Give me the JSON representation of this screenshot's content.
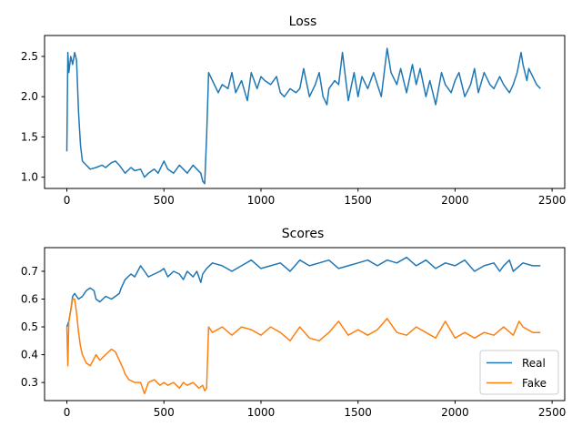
{
  "figure": {
    "background": "#ffffff"
  },
  "chart_data": [
    {
      "type": "line",
      "title": "Loss",
      "xlabel": "",
      "ylabel": "",
      "xlim": [
        -115,
        2565
      ],
      "ylim": [
        0.86,
        2.76
      ],
      "xticks": [
        0,
        500,
        1000,
        1500,
        2000,
        2500
      ],
      "xtick_labels": [
        "0",
        "500",
        "1000",
        "1500",
        "2000",
        "2500"
      ],
      "yticks": [
        1.0,
        1.5,
        2.0,
        2.5
      ],
      "ytick_labels": [
        "1.0",
        "1.5",
        "2.0",
        "2.5"
      ],
      "grid": false,
      "legend": null,
      "series": [
        {
          "color": "#1f77b4",
          "x": [
            0,
            5,
            10,
            20,
            30,
            40,
            50,
            60,
            70,
            80,
            100,
            120,
            150,
            180,
            200,
            230,
            250,
            270,
            300,
            330,
            350,
            380,
            400,
            420,
            450,
            470,
            490,
            500,
            520,
            550,
            580,
            600,
            620,
            650,
            670,
            690,
            700,
            710,
            720,
            730,
            750,
            780,
            800,
            830,
            850,
            870,
            900,
            930,
            950,
            980,
            1000,
            1020,
            1050,
            1080,
            1100,
            1120,
            1150,
            1180,
            1200,
            1220,
            1250,
            1280,
            1300,
            1320,
            1340,
            1350,
            1380,
            1400,
            1420,
            1450,
            1480,
            1500,
            1520,
            1550,
            1580,
            1600,
            1620,
            1650,
            1670,
            1700,
            1720,
            1750,
            1780,
            1800,
            1820,
            1850,
            1870,
            1900,
            1930,
            1950,
            1980,
            2000,
            2020,
            2050,
            2080,
            2100,
            2120,
            2150,
            2180,
            2200,
            2230,
            2250,
            2280,
            2300,
            2320,
            2340,
            2350,
            2370,
            2380,
            2400,
            2420,
            2440
          ],
          "y": [
            1.32,
            2.55,
            2.3,
            2.5,
            2.4,
            2.55,
            2.45,
            1.8,
            1.4,
            1.2,
            1.15,
            1.1,
            1.12,
            1.15,
            1.12,
            1.18,
            1.2,
            1.15,
            1.05,
            1.12,
            1.08,
            1.1,
            1.0,
            1.05,
            1.1,
            1.05,
            1.15,
            1.2,
            1.1,
            1.05,
            1.15,
            1.1,
            1.05,
            1.15,
            1.1,
            1.05,
            0.95,
            0.92,
            1.5,
            2.3,
            2.2,
            2.05,
            2.15,
            2.1,
            2.3,
            2.05,
            2.2,
            1.95,
            2.3,
            2.1,
            2.25,
            2.2,
            2.15,
            2.25,
            2.05,
            2.0,
            2.1,
            2.05,
            2.1,
            2.35,
            2.0,
            2.15,
            2.3,
            2.0,
            1.9,
            2.1,
            2.2,
            2.15,
            2.55,
            1.95,
            2.3,
            2.0,
            2.25,
            2.1,
            2.3,
            2.15,
            2.0,
            2.6,
            2.3,
            2.15,
            2.35,
            2.05,
            2.4,
            2.15,
            2.35,
            2.0,
            2.2,
            1.9,
            2.3,
            2.15,
            2.05,
            2.2,
            2.3,
            2.0,
            2.15,
            2.35,
            2.05,
            2.3,
            2.15,
            2.1,
            2.25,
            2.15,
            2.05,
            2.15,
            2.3,
            2.55,
            2.4,
            2.2,
            2.35,
            2.25,
            2.15,
            2.1
          ]
        }
      ]
    },
    {
      "type": "line",
      "title": "Scores",
      "xlabel": "",
      "ylabel": "",
      "xlim": [
        -115,
        2565
      ],
      "ylim": [
        0.235,
        0.785
      ],
      "xticks": [
        0,
        500,
        1000,
        1500,
        2000,
        2500
      ],
      "xtick_labels": [
        "0",
        "500",
        "1000",
        "1500",
        "2000",
        "2500"
      ],
      "yticks": [
        0.3,
        0.4,
        0.5,
        0.6,
        0.7
      ],
      "ytick_labels": [
        "0.3",
        "0.4",
        "0.5",
        "0.6",
        "0.7"
      ],
      "grid": false,
      "legend": "lower-right",
      "series": [
        {
          "name": "Real",
          "color": "#1f77b4",
          "x": [
            0,
            10,
            20,
            30,
            40,
            60,
            80,
            100,
            120,
            140,
            150,
            170,
            200,
            230,
            250,
            270,
            280,
            300,
            330,
            350,
            380,
            400,
            420,
            450,
            480,
            500,
            520,
            550,
            580,
            600,
            620,
            650,
            670,
            690,
            700,
            720,
            750,
            800,
            850,
            900,
            950,
            1000,
            1050,
            1100,
            1150,
            1200,
            1250,
            1300,
            1350,
            1400,
            1450,
            1500,
            1550,
            1600,
            1650,
            1700,
            1750,
            1800,
            1850,
            1900,
            1950,
            2000,
            2050,
            2100,
            2150,
            2200,
            2230,
            2250,
            2280,
            2300,
            2350,
            2400,
            2440
          ],
          "y": [
            0.5,
            0.52,
            0.56,
            0.61,
            0.62,
            0.6,
            0.61,
            0.63,
            0.64,
            0.63,
            0.6,
            0.59,
            0.61,
            0.6,
            0.61,
            0.62,
            0.64,
            0.67,
            0.69,
            0.68,
            0.72,
            0.7,
            0.68,
            0.69,
            0.7,
            0.71,
            0.68,
            0.7,
            0.69,
            0.67,
            0.7,
            0.68,
            0.7,
            0.66,
            0.69,
            0.71,
            0.73,
            0.72,
            0.7,
            0.72,
            0.74,
            0.71,
            0.72,
            0.73,
            0.7,
            0.74,
            0.72,
            0.73,
            0.74,
            0.71,
            0.72,
            0.73,
            0.74,
            0.72,
            0.74,
            0.73,
            0.75,
            0.72,
            0.74,
            0.71,
            0.73,
            0.72,
            0.74,
            0.7,
            0.72,
            0.73,
            0.7,
            0.72,
            0.74,
            0.7,
            0.73,
            0.72,
            0.72
          ]
        },
        {
          "name": "Fake",
          "color": "#ff7f0e",
          "x": [
            0,
            5,
            10,
            20,
            30,
            40,
            50,
            60,
            70,
            80,
            100,
            120,
            150,
            170,
            200,
            230,
            250,
            270,
            290,
            300,
            320,
            350,
            380,
            400,
            420,
            450,
            480,
            500,
            520,
            550,
            580,
            600,
            620,
            650,
            680,
            700,
            710,
            720,
            730,
            750,
            800,
            850,
            900,
            950,
            1000,
            1050,
            1100,
            1150,
            1200,
            1250,
            1300,
            1350,
            1400,
            1450,
            1500,
            1550,
            1600,
            1650,
            1700,
            1750,
            1800,
            1850,
            1900,
            1950,
            2000,
            2050,
            2100,
            2150,
            2200,
            2250,
            2300,
            2330,
            2350,
            2400,
            2440
          ],
          "y": [
            0.5,
            0.36,
            0.52,
            0.56,
            0.6,
            0.6,
            0.55,
            0.48,
            0.43,
            0.4,
            0.37,
            0.36,
            0.4,
            0.38,
            0.4,
            0.42,
            0.41,
            0.38,
            0.35,
            0.33,
            0.31,
            0.3,
            0.3,
            0.26,
            0.3,
            0.31,
            0.29,
            0.3,
            0.29,
            0.3,
            0.28,
            0.3,
            0.29,
            0.3,
            0.28,
            0.29,
            0.27,
            0.28,
            0.5,
            0.48,
            0.5,
            0.47,
            0.5,
            0.49,
            0.47,
            0.5,
            0.48,
            0.45,
            0.5,
            0.46,
            0.45,
            0.48,
            0.52,
            0.47,
            0.49,
            0.47,
            0.49,
            0.53,
            0.48,
            0.47,
            0.5,
            0.48,
            0.46,
            0.52,
            0.46,
            0.48,
            0.46,
            0.48,
            0.47,
            0.5,
            0.47,
            0.52,
            0.5,
            0.48,
            0.48
          ]
        }
      ]
    }
  ]
}
